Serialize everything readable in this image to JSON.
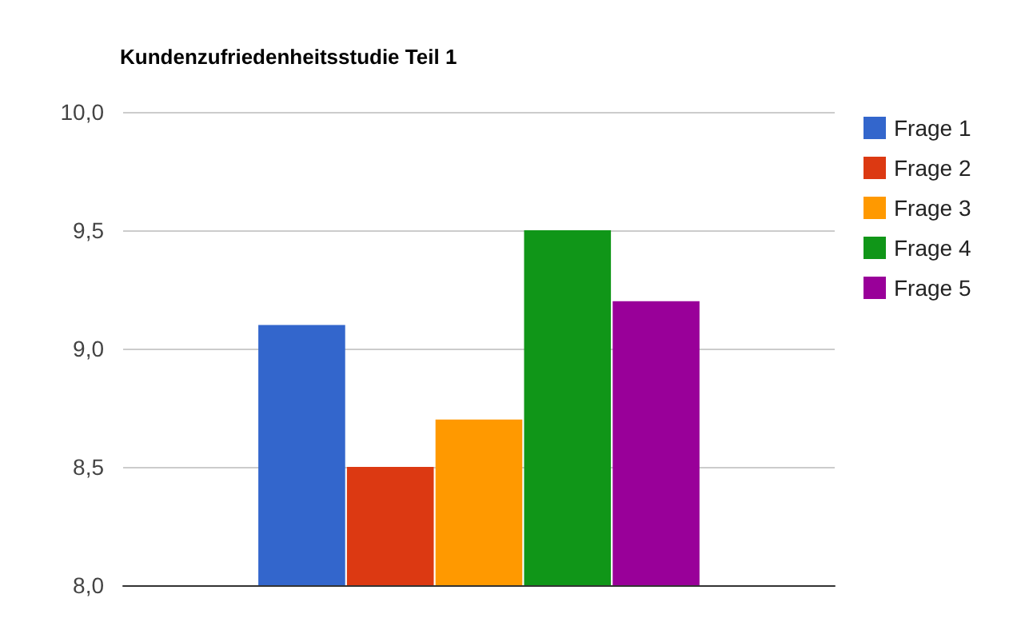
{
  "chart_data": {
    "type": "bar",
    "title": "Kundenzufriedenheitsstudie Teil 1",
    "categories": [
      null
    ],
    "series": [
      {
        "name": "Frage 1",
        "color": "#3366cc",
        "values": [
          9.1
        ]
      },
      {
        "name": "Frage 2",
        "color": "#dc3912",
        "values": [
          8.5
        ]
      },
      {
        "name": "Frage 3",
        "color": "#ff9900",
        "values": [
          8.7
        ]
      },
      {
        "name": "Frage 4",
        "color": "#109618",
        "values": [
          9.5
        ]
      },
      {
        "name": "Frage 5",
        "color": "#990099",
        "values": [
          9.2
        ]
      }
    ],
    "ylim": [
      8,
      10
    ],
    "yticks": [
      {
        "value": 8,
        "label": "8,0"
      },
      {
        "value": 8.5,
        "label": "8,5"
      },
      {
        "value": 9,
        "label": "9,0"
      },
      {
        "value": 9.5,
        "label": "9,5"
      },
      {
        "value": 10,
        "label": "10,0"
      }
    ],
    "grid": "y",
    "legend": "right top"
  }
}
